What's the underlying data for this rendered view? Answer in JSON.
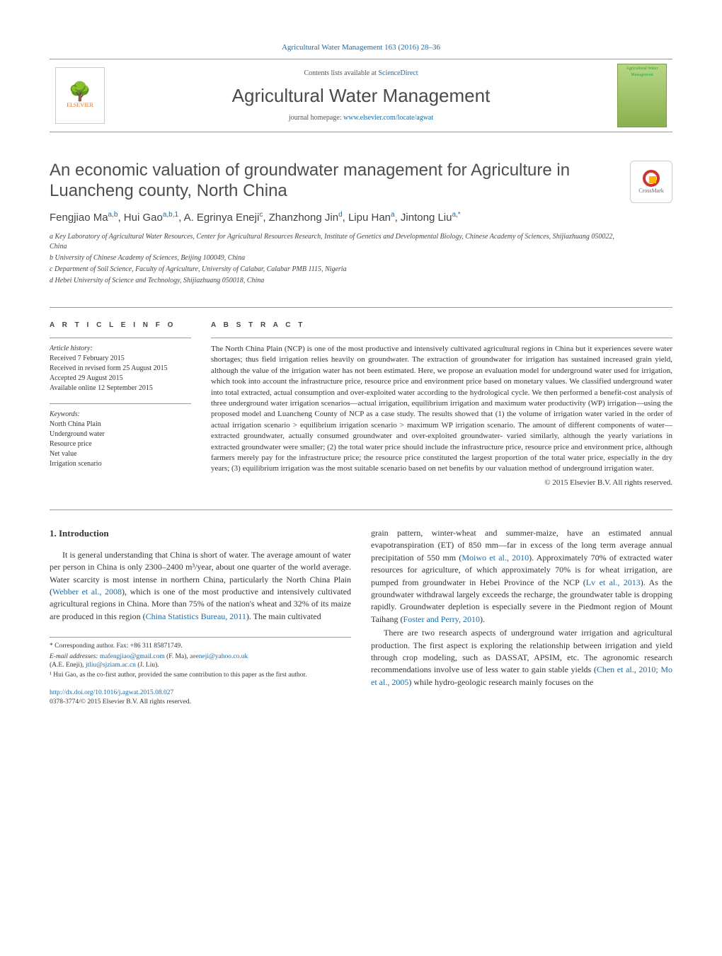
{
  "header": {
    "top_link_text": "Agricultural Water Management 163 (2016) 28–36",
    "contents_available": "Contents lists available at ",
    "sciencedirect": "ScienceDirect",
    "journal_name": "Agricultural Water Management",
    "homepage_label": "journal homepage: ",
    "homepage_url": "www.elsevier.com/locate/agwat",
    "elsevier": "ELSEVIER",
    "cover_caption": "Agricultural Water Management"
  },
  "article": {
    "title": "An economic valuation of groundwater management for Agriculture in Luancheng county, North China",
    "crossmark": "CrossMark",
    "authors_html": "Fengjiao Ma<sup>a,b</sup>, Hui Gao<sup>a,b,1</sup>, A. Egrinya Eneji<sup>c</sup>, Zhanzhong Jin<sup>d</sup>, Lipu Han<sup>a</sup>, Jintong Liu<sup>a,*</sup>",
    "affiliations": [
      "a Key Laboratory of Agricultural Water Resources, Center for Agricultural Resources Research, Institute of Genetics and Developmental Biology, Chinese Academy of Sciences, Shijiazhuang 050022, China",
      "b University of Chinese Academy of Sciences, Beijing 100049, China",
      "c Department of Soil Science, Faculty of Agriculture, University of Calabar, Calabar PMB 1115, Nigeria",
      "d Hebei University of Science and Technology, Shijiazhuang 050018, China"
    ]
  },
  "info": {
    "heading": "A R T I C L E  I N F O",
    "history_label": "Article history:",
    "history": [
      "Received 7 February 2015",
      "Received in revised form 25 August 2015",
      "Accepted 29 August 2015",
      "Available online 12 September 2015"
    ],
    "keywords_label": "Keywords:",
    "keywords": [
      "North China Plain",
      "Underground water",
      "Resource price",
      "Net value",
      "Irrigation scenario"
    ]
  },
  "abstract": {
    "heading": "A B S T R A C T",
    "text": "The North China Plain (NCP) is one of the most productive and intensively cultivated agricultural regions in China but it experiences severe water shortages; thus field irrigation relies heavily on groundwater. The extraction of groundwater for irrigation has sustained increased grain yield, although the value of the irrigation water has not been estimated. Here, we propose an evaluation model for underground water used for irrigation, which took into account the infrastructure price, resource price and environment price based on monetary values. We classified underground water into total extracted, actual consumption and over-exploited water according to the hydrological cycle. We then performed a benefit-cost analysis of three underground water irrigation scenarios—actual irrigation, equilibrium irrigation and maximum water productivity (WP) irrigation—using the proposed model and Luancheng County of NCP as a case study. The results showed that (1) the volume of irrigation water varied in the order of actual irrigation scenario > equilibrium irrigation scenario > maximum WP irrigation scenario. The amount of different components of water—extracted groundwater, actually consumed groundwater and over-exploited groundwater- varied similarly, although the yearly variations in extracted groundwater were smaller; (2) the total water price should include the infrastructure price, resource price and environment price, although farmers merely pay for the infrastructure price; the resource price constituted the largest proportion of the total water price, especially in the dry years; (3) equilibrium irrigation was the most suitable scenario based on net benefits by our valuation method of underground irrigation water.",
    "copyright": "© 2015 Elsevier B.V. All rights reserved."
  },
  "body": {
    "section_heading": "1. Introduction",
    "col1_p1": "It is general understanding that China is short of water. The average amount of water per person in China is only 2300–2400 m³/year, about one quarter of the world average. Water scarcity is most intense in northern China, particularly the North China Plain (Webber et al., 2008), which is one of the most productive and intensively cultivated agricultural regions in China. More than 75% of the nation's wheat and 32% of its maize are produced in this region (China Statistics Bureau, 2011). The main cultivated",
    "col2_p1": "grain pattern, winter-wheat and summer-maize, have an estimated annual evapotranspiration (ET) of 850 mm—far in excess of the long term average annual precipitation of 550 mm (Moiwo et al., 2010). Approximately 70% of extracted water resources for agriculture, of which approximately 70% is for wheat irrigation, are pumped from groundwater in Hebei Province of the NCP (Lv et al., 2013). As the groundwater withdrawal largely exceeds the recharge, the groundwater table is dropping rapidly. Groundwater depletion is especially severe in the Piedmont region of Mount Taihang (Foster and Perry, 2010).",
    "col2_p2": "There are two research aspects of underground water irrigation and agricultural production. The first aspect is exploring the relationship between irrigation and yield through crop modeling, such as DASSAT, APSIM, etc. The agronomic research recommendations involve use of less water to gain stable yields (Chen et al., 2010; Mo et al., 2005) while hydro-geologic research mainly focuses on the"
  },
  "footnotes": {
    "corresponding": "* Corresponding author. Fax: +86 311 85871749.",
    "emails_label": "E-mail addresses: ",
    "email1": "mafengjiao@gmail.com",
    "email1_who": " (F. Ma), ",
    "email2": "aeeneji@yahoo.co.uk",
    "email2_who": " (A.E. Eneji), ",
    "email3": "jtliu@sjziam.ac.cn",
    "email3_who": " (J. Liu).",
    "note1": "¹ Hui Gao, as the co-first author, provided the same contribution to this paper as the first author."
  },
  "doi": {
    "url": "http://dx.doi.org/10.1016/j.agwat.2015.08.027",
    "issn_line": "0378-3774/© 2015 Elsevier B.V. All rights reserved."
  },
  "refs": {
    "webber": "Webber et al., 2008",
    "csb": "China Statistics Bureau, 2011",
    "moiwo": "Moiwo et al., 2010",
    "lv": "Lv et al., 2013",
    "foster": "Foster and Perry, 2010",
    "chen": "Chen et al., 2010; Mo et al., 2005"
  },
  "colors": {
    "link": "#1a6ba8",
    "elsevier_orange": "#e9711c",
    "text": "#333333",
    "rule": "#999999"
  }
}
